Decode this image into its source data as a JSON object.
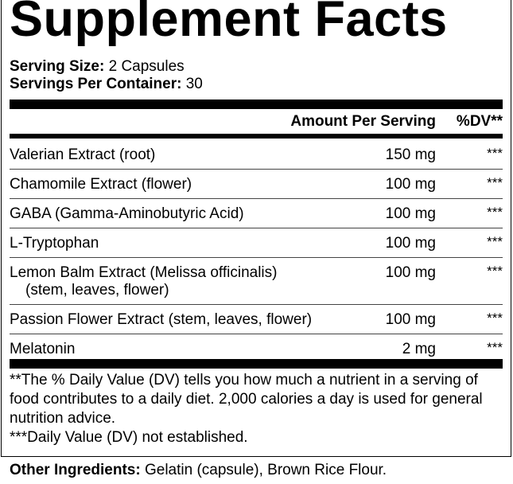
{
  "title": "Supplement Facts",
  "serving_size": {
    "label": "Serving Size:",
    "value": "2 Capsules"
  },
  "servings_per_container": {
    "label": "Servings Per Container:",
    "value": "30"
  },
  "header": {
    "amount": "Amount Per Serving",
    "dv": "%DV**"
  },
  "ingredients": [
    {
      "name": "Valerian Extract (root)",
      "sub": "",
      "amount": "150 mg",
      "dv": "***"
    },
    {
      "name": "Chamomile Extract (flower)",
      "sub": "",
      "amount": "100 mg",
      "dv": "***"
    },
    {
      "name": "GABA (Gamma-Aminobutyric Acid)",
      "sub": "",
      "amount": "100 mg",
      "dv": "***"
    },
    {
      "name": "L-Tryptophan",
      "sub": "",
      "amount": "100 mg",
      "dv": "***"
    },
    {
      "name": "Lemon Balm Extract (Melissa officinalis)",
      "sub": "(stem, leaves, flower)",
      "amount": "100 mg",
      "dv": "***"
    },
    {
      "name": "Passion Flower Extract (stem, leaves, flower)",
      "sub": "",
      "amount": "100 mg",
      "dv": "***"
    },
    {
      "name": "Melatonin",
      "sub": "",
      "amount": "2 mg",
      "dv": "***"
    }
  ],
  "footnotes": [
    "**The % Daily Value (DV) tells you how much a nutrient in a serving of food contributes to a daily diet. 2,000 calories a day is used for general nutrition advice.",
    "***Daily Value (DV) not established."
  ],
  "other_ingredients": {
    "label": "Other Ingredients:",
    "value": "Gelatin (capsule), Brown Rice Flour."
  }
}
